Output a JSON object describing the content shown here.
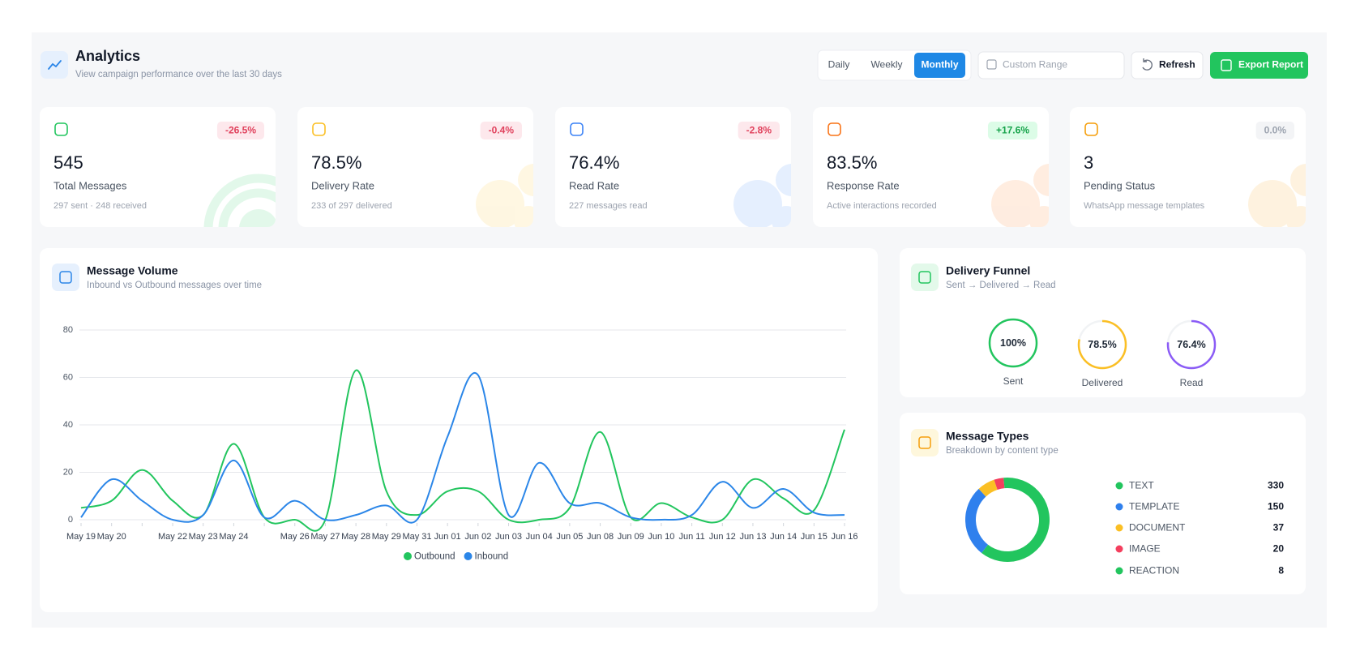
{
  "header": {
    "title": "Analytics",
    "subtitle": "View campaign performance over the last 30 days"
  },
  "controls": {
    "periods": [
      "Daily",
      "Weekly",
      "Monthly"
    ],
    "active_period": "Monthly",
    "custom_range": "Custom Range",
    "refresh": "Refresh",
    "export": "Export Report"
  },
  "stats": [
    {
      "badge": "-26.5%",
      "value": "545",
      "label": "Total Messages",
      "note": "297 sent · 248 received",
      "color": "#22c55e"
    },
    {
      "badge": "-0.4%",
      "value": "78.5%",
      "label": "Delivery Rate",
      "note": "233 of 297 delivered",
      "color": "#fbbf24"
    },
    {
      "badge": "-2.8%",
      "value": "76.4%",
      "label": "Read Rate",
      "note": "227 messages read",
      "color": "#3b82f6"
    },
    {
      "badge": "+17.6%",
      "value": "83.5%",
      "label": "Response Rate",
      "note": "Active interactions recorded",
      "color": "#f97316"
    },
    {
      "badge": "0.0%",
      "value": "3",
      "label": "Pending Status",
      "note": "WhatsApp message templates",
      "color": "#f59e0b"
    }
  ],
  "chart_data": [
    {
      "type": "line",
      "title": "Message Volume",
      "subtitle": "Inbound vs Outbound messages over time",
      "categories": [
        "May 19",
        "May 20",
        null,
        "May 22",
        "May 23",
        "May 24",
        null,
        "May 26",
        "May 27",
        "May 28",
        "May 29",
        "May 31",
        "Jun 01",
        "Jun 02",
        "Jun 03",
        "Jun 04",
        "Jun 05",
        "Jun 08",
        "Jun 09",
        "Jun 10",
        "Jun 11",
        "Jun 12",
        "Jun 13",
        "Jun 14",
        "Jun 15",
        "Jun 16"
      ],
      "series": [
        {
          "name": "Outbound",
          "color": "#22c55e",
          "values": [
            5,
            8,
            21,
            8,
            2,
            32,
            1,
            0,
            0,
            63,
            12,
            2,
            12,
            12,
            0,
            0,
            5,
            37,
            1,
            7,
            1,
            0,
            17,
            9,
            4,
            38
          ]
        },
        {
          "name": "Inbound",
          "color": "#2b86e8",
          "values": [
            1,
            17,
            8,
            0,
            2,
            25,
            1,
            8,
            0,
            2,
            6,
            0,
            35,
            61,
            2,
            24,
            7,
            7,
            1,
            0,
            2,
            16,
            5,
            13,
            3,
            2
          ]
        }
      ],
      "ylim": [
        0,
        80
      ],
      "yticks": [
        0,
        20,
        40,
        60,
        80
      ],
      "grid": true
    },
    {
      "type": "ring",
      "title": "Delivery Funnel",
      "subtitle": "Sent → Delivered → Read",
      "categories": [
        "Sent",
        "Delivered",
        "Read"
      ],
      "values": [
        100,
        78.5,
        76.4
      ],
      "value_labels": [
        "100%",
        "78.5%",
        "76.4%"
      ],
      "colors": [
        "#22c55e",
        "#fbbf24",
        "#8b5cf6"
      ],
      "ylim": [
        0,
        100
      ]
    },
    {
      "type": "donut",
      "title": "Message Types",
      "subtitle": "Breakdown by content type",
      "categories": [
        "TEXT",
        "TEMPLATE",
        "DOCUMENT",
        "IMAGE",
        "REACTION"
      ],
      "values": [
        330,
        150,
        37,
        20,
        8
      ],
      "colors": [
        "#22c55e",
        "#2f80ed",
        "#fbbf24",
        "#f43f5e",
        "#22c55e"
      ]
    }
  ]
}
